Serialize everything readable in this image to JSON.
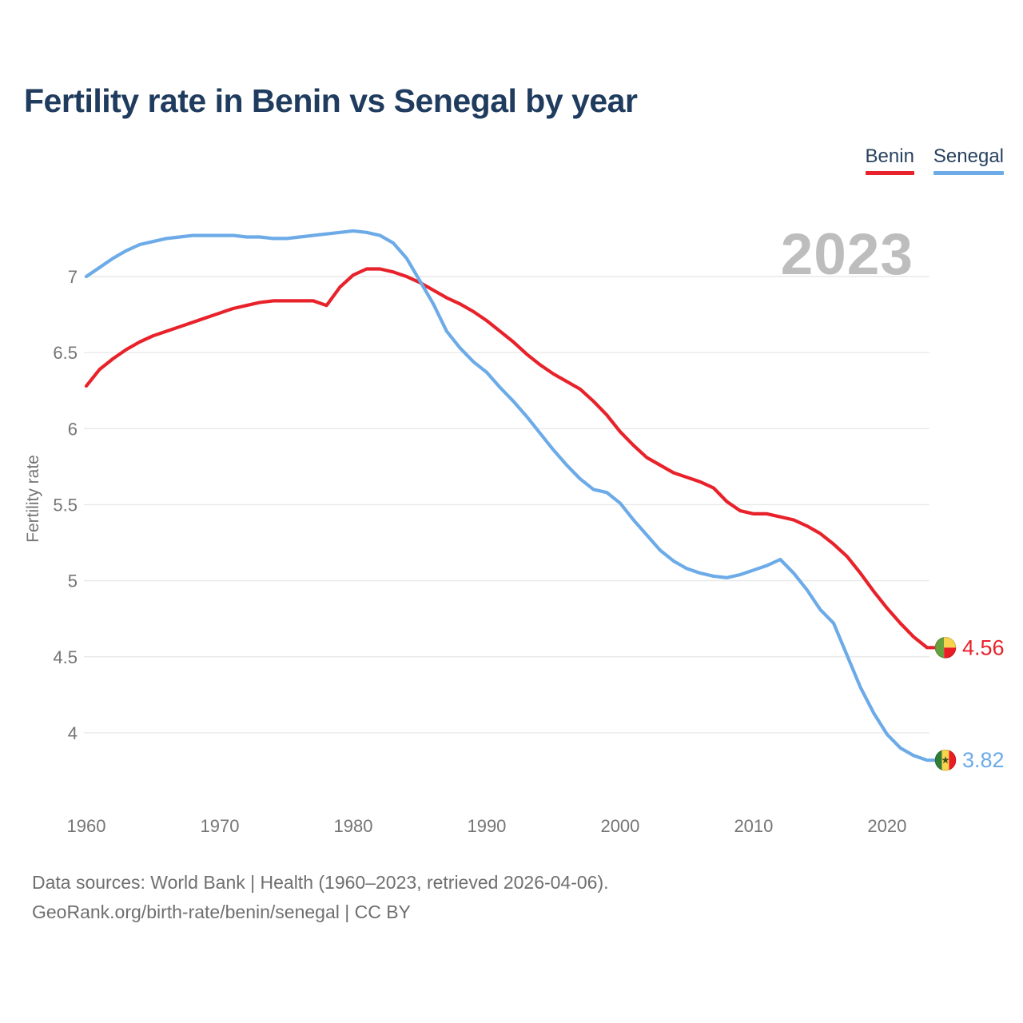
{
  "title": "Fertility rate in Benin vs Senegal by year",
  "watermark": "2023",
  "legend": {
    "items": [
      {
        "label": "Benin",
        "color": "#e8222a"
      },
      {
        "label": "Senegal",
        "color": "#6cabe8"
      }
    ]
  },
  "footer": {
    "line1": "Data sources: World Bank | Health (1960–2023, retrieved 2026-04-06).",
    "line2": "GeoRank.org/birth-rate/benin/senegal | CC BY"
  },
  "chart_data": {
    "type": "line",
    "title": "Fertility rate in Benin vs Senegal by year",
    "xlabel": "",
    "ylabel": "Fertility rate",
    "grid": true,
    "legend_position": "top-right",
    "xlim": [
      1960,
      2023
    ],
    "ylim": [
      3.5,
      7.45
    ],
    "xticks": [
      1960,
      1970,
      1980,
      1990,
      2000,
      2010,
      2020
    ],
    "yticks": [
      7,
      6.5,
      6,
      5.5,
      5,
      4.5,
      4
    ],
    "x": [
      1960,
      1961,
      1962,
      1963,
      1964,
      1965,
      1966,
      1967,
      1968,
      1969,
      1970,
      1971,
      1972,
      1973,
      1974,
      1975,
      1976,
      1977,
      1978,
      1979,
      1980,
      1981,
      1982,
      1983,
      1984,
      1985,
      1986,
      1987,
      1988,
      1989,
      1990,
      1991,
      1992,
      1993,
      1994,
      1995,
      1996,
      1997,
      1998,
      1999,
      2000,
      2001,
      2002,
      2003,
      2004,
      2005,
      2006,
      2007,
      2008,
      2009,
      2010,
      2011,
      2012,
      2013,
      2014,
      2015,
      2016,
      2017,
      2018,
      2019,
      2020,
      2021,
      2022,
      2023
    ],
    "series": [
      {
        "name": "Benin",
        "color": "#e8222a",
        "end_label": "4.56",
        "flag": "benin",
        "values": [
          6.28,
          6.39,
          6.46,
          6.52,
          6.57,
          6.61,
          6.64,
          6.67,
          6.7,
          6.73,
          6.76,
          6.79,
          6.81,
          6.83,
          6.84,
          6.84,
          6.84,
          6.84,
          6.81,
          6.93,
          7.01,
          7.05,
          7.05,
          7.03,
          7.0,
          6.96,
          6.91,
          6.86,
          6.82,
          6.77,
          6.71,
          6.64,
          6.57,
          6.49,
          6.42,
          6.36,
          6.31,
          6.26,
          6.18,
          6.09,
          5.98,
          5.89,
          5.81,
          5.76,
          5.71,
          5.68,
          5.65,
          5.61,
          5.52,
          5.46,
          5.44,
          5.44,
          5.42,
          5.4,
          5.36,
          5.31,
          5.24,
          5.16,
          5.05,
          4.93,
          4.82,
          4.72,
          4.63,
          4.56
        ]
      },
      {
        "name": "Senegal",
        "color": "#6cabe8",
        "end_label": "3.82",
        "flag": "senegal",
        "values": [
          7.0,
          7.06,
          7.12,
          7.17,
          7.21,
          7.23,
          7.25,
          7.26,
          7.27,
          7.27,
          7.27,
          7.27,
          7.26,
          7.26,
          7.25,
          7.25,
          7.26,
          7.27,
          7.28,
          7.29,
          7.3,
          7.29,
          7.27,
          7.22,
          7.12,
          6.97,
          6.82,
          6.64,
          6.53,
          6.44,
          6.37,
          6.27,
          6.18,
          6.08,
          5.97,
          5.86,
          5.76,
          5.67,
          5.6,
          5.58,
          5.51,
          5.4,
          5.3,
          5.2,
          5.13,
          5.08,
          5.05,
          5.03,
          5.02,
          5.04,
          5.07,
          5.1,
          5.14,
          5.05,
          4.94,
          4.81,
          4.72,
          4.51,
          4.3,
          4.13,
          3.99,
          3.9,
          3.85,
          3.82
        ]
      }
    ],
    "flag_colors": {
      "benin": {
        "green": "#69a13e",
        "yellow": "#f8d34c",
        "red": "#ea1c24"
      },
      "senegal": {
        "green": "#2f7d39",
        "yellow": "#f8d34c",
        "red": "#ea1c24",
        "star": "#3d4d1e"
      }
    },
    "style": {
      "grid_color": "#e9e9e9",
      "tick_color": "#757575",
      "watermark_color": "#bdbdbd",
      "axis_label_color": "#757575"
    }
  }
}
